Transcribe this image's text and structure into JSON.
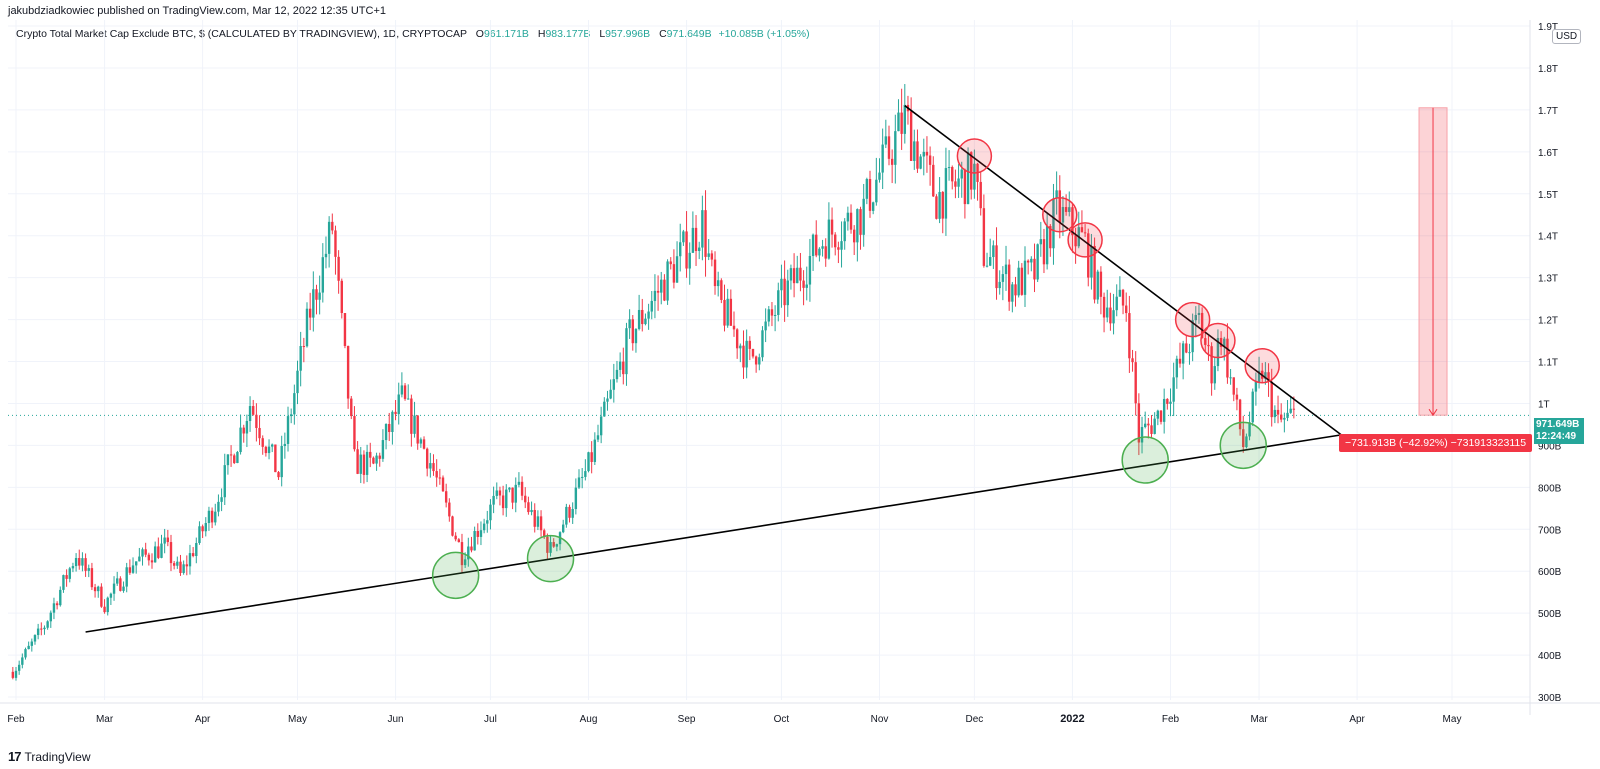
{
  "header": {
    "publisher": "jakubdziadkowiec published on TradingView.com, Mar 12, 2022 12:35 UTC+1"
  },
  "legend": {
    "symbol": "Crypto Total Market Cap Exclude BTC, $ (CALCULATED BY TRADINGVIEW), 1D, CRYPTOCAP",
    "open_key": "O",
    "open": "961.171B",
    "high_key": "H",
    "high": "983.177B",
    "low_key": "L",
    "low": "957.996B",
    "close_key": "C",
    "close": "971.649B",
    "change": "+10.085B (+1.05%)"
  },
  "currency": "USD",
  "price_badge": {
    "price": "971.649B",
    "countdown": "12:24:49"
  },
  "measure_badge": "−731.913B (−42.92%) −731913323115",
  "footer": {
    "logo": "17",
    "brand": "TradingView"
  },
  "colors": {
    "up": "#26a69a",
    "down": "#f23645",
    "trendline": "#000000",
    "resistance_circle": "#f23645",
    "support_circle": "#4caf50"
  },
  "chart_data": {
    "type": "candlestick",
    "title": "Crypto Total Market Cap Exclude BTC",
    "ylim": [
      300,
      1900
    ],
    "y_unit": "B (USD)",
    "y_ticks": [
      {
        "v": 300,
        "label": "300B"
      },
      {
        "v": 400,
        "label": "400B"
      },
      {
        "v": 500,
        "label": "500B"
      },
      {
        "v": 600,
        "label": "600B"
      },
      {
        "v": 700,
        "label": "700B"
      },
      {
        "v": 800,
        "label": "800B"
      },
      {
        "v": 900,
        "label": "900B"
      },
      {
        "v": 1000,
        "label": "1T"
      },
      {
        "v": 1100,
        "label": "1.1T"
      },
      {
        "v": 1200,
        "label": "1.2T"
      },
      {
        "v": 1300,
        "label": "1.3T"
      },
      {
        "v": 1400,
        "label": "1.4T"
      },
      {
        "v": 1500,
        "label": "1.5T"
      },
      {
        "v": 1600,
        "label": "1.6T"
      },
      {
        "v": 1700,
        "label": "1.7T"
      },
      {
        "v": 1800,
        "label": "1.8T"
      },
      {
        "v": 1900,
        "label": "1.9T"
      }
    ],
    "x_ticks": [
      {
        "date": "2021-02-01",
        "label": "Feb"
      },
      {
        "date": "2021-03-01",
        "label": "Mar"
      },
      {
        "date": "2021-04-01",
        "label": "Apr"
      },
      {
        "date": "2021-05-01",
        "label": "May"
      },
      {
        "date": "2021-06-01",
        "label": "Jun"
      },
      {
        "date": "2021-07-01",
        "label": "Jul"
      },
      {
        "date": "2021-08-01",
        "label": "Aug"
      },
      {
        "date": "2021-09-01",
        "label": "Sep"
      },
      {
        "date": "2021-10-01",
        "label": "Oct"
      },
      {
        "date": "2021-11-01",
        "label": "Nov"
      },
      {
        "date": "2021-12-01",
        "label": "Dec"
      },
      {
        "date": "2022-01-01",
        "label": "2022",
        "bold": true
      },
      {
        "date": "2022-02-01",
        "label": "Feb"
      },
      {
        "date": "2022-03-01",
        "label": "Mar"
      },
      {
        "date": "2022-04-01",
        "label": "Apr"
      },
      {
        "date": "2022-05-01",
        "label": "May"
      }
    ],
    "price_path": [
      [
        "2021-01-31",
        360
      ],
      [
        "2021-02-10",
        470
      ],
      [
        "2021-02-20",
        640
      ],
      [
        "2021-03-01",
        520
      ],
      [
        "2021-03-10",
        620
      ],
      [
        "2021-03-20",
        660
      ],
      [
        "2021-03-25",
        590
      ],
      [
        "2021-04-05",
        760
      ],
      [
        "2021-04-16",
        1000
      ],
      [
        "2021-04-25",
        830
      ],
      [
        "2021-05-05",
        1220
      ],
      [
        "2021-05-12",
        1420
      ],
      [
        "2021-05-19",
        860
      ],
      [
        "2021-05-25",
        850
      ],
      [
        "2021-06-03",
        1010
      ],
      [
        "2021-06-12",
        860
      ],
      [
        "2021-06-22",
        640
      ],
      [
        "2021-07-02",
        760
      ],
      [
        "2021-07-10",
        790
      ],
      [
        "2021-07-20",
        650
      ],
      [
        "2021-08-01",
        850
      ],
      [
        "2021-08-14",
        1160
      ],
      [
        "2021-08-24",
        1280
      ],
      [
        "2021-09-06",
        1430
      ],
      [
        "2021-09-10",
        1260
      ],
      [
        "2021-09-21",
        1100
      ],
      [
        "2021-10-01",
        1250
      ],
      [
        "2021-10-15",
        1400
      ],
      [
        "2021-10-26",
        1450
      ],
      [
        "2021-11-09",
        1680
      ],
      [
        "2021-11-19",
        1490
      ],
      [
        "2021-12-01",
        1550
      ],
      [
        "2021-12-04",
        1360
      ],
      [
        "2021-12-13",
        1280
      ],
      [
        "2021-12-20",
        1310
      ],
      [
        "2021-12-27",
        1460
      ],
      [
        "2022-01-05",
        1380
      ],
      [
        "2022-01-10",
        1240
      ],
      [
        "2022-01-18",
        1230
      ],
      [
        "2022-01-22",
        920
      ],
      [
        "2022-01-28",
        970
      ],
      [
        "2022-02-10",
        1200
      ],
      [
        "2022-02-14",
        1080
      ],
      [
        "2022-02-17",
        1170
      ],
      [
        "2022-02-24",
        900
      ],
      [
        "2022-03-02",
        1080
      ],
      [
        "2022-03-07",
        950
      ],
      [
        "2022-03-12",
        972
      ]
    ],
    "last_price": 971.649,
    "trendlines": [
      {
        "name": "support",
        "from": [
          "2021-02-23",
          455
        ],
        "to": [
          "2022-03-27",
          925
        ]
      },
      {
        "name": "resistance",
        "from": [
          "2021-11-09",
          1710
        ],
        "to": [
          "2022-03-27",
          925
        ]
      }
    ],
    "resistance_touches": [
      [
        "2021-12-01",
        1590
      ],
      [
        "2021-12-28",
        1450
      ],
      [
        "2022-01-05",
        1390
      ],
      [
        "2022-02-08",
        1200
      ],
      [
        "2022-02-16",
        1150
      ],
      [
        "2022-03-02",
        1090
      ]
    ],
    "support_touches": [
      [
        "2021-06-20",
        590
      ],
      [
        "2021-07-20",
        630
      ],
      [
        "2022-01-24",
        865
      ],
      [
        "2022-02-24",
        900
      ]
    ],
    "measure": {
      "from_date": "2022-04-25",
      "top": 1705,
      "bottom": 972,
      "change": "−731.913B (−42.92%)"
    }
  }
}
